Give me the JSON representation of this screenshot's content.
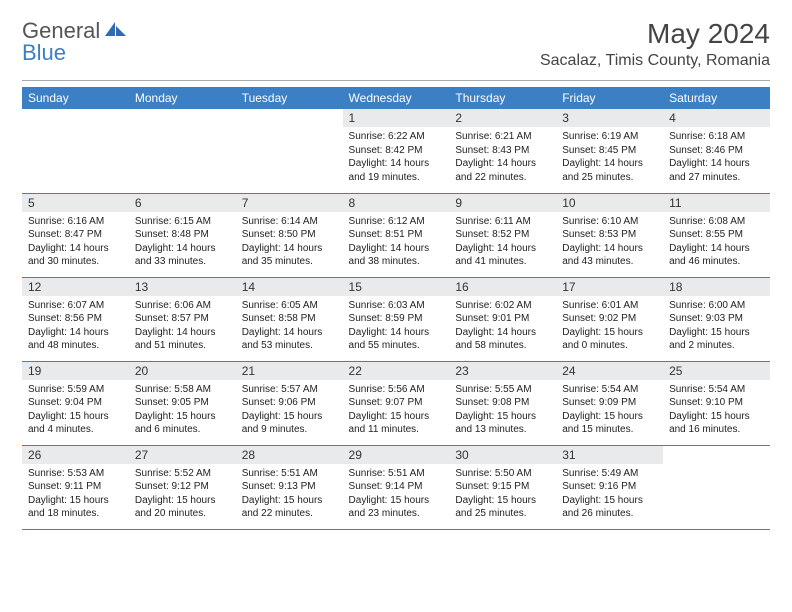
{
  "logo": {
    "part1": "General",
    "part2": "Blue"
  },
  "title": "May 2024",
  "location": "Sacalaz, Timis County, Romania",
  "colors": {
    "header_bg": "#3b7fc4",
    "header_text": "#ffffff",
    "daynum_bg": "#e8eaec",
    "rule": "#5a7a9a",
    "logo_blue": "#3b7fc4",
    "logo_gray": "#555555"
  },
  "weekdays": [
    "Sunday",
    "Monday",
    "Tuesday",
    "Wednesday",
    "Thursday",
    "Friday",
    "Saturday"
  ],
  "weeks": [
    [
      null,
      null,
      null,
      {
        "n": "1",
        "sunrise": "6:22 AM",
        "sunset": "8:42 PM",
        "dl_h": 14,
        "dl_m": 19
      },
      {
        "n": "2",
        "sunrise": "6:21 AM",
        "sunset": "8:43 PM",
        "dl_h": 14,
        "dl_m": 22
      },
      {
        "n": "3",
        "sunrise": "6:19 AM",
        "sunset": "8:45 PM",
        "dl_h": 14,
        "dl_m": 25
      },
      {
        "n": "4",
        "sunrise": "6:18 AM",
        "sunset": "8:46 PM",
        "dl_h": 14,
        "dl_m": 27
      }
    ],
    [
      {
        "n": "5",
        "sunrise": "6:16 AM",
        "sunset": "8:47 PM",
        "dl_h": 14,
        "dl_m": 30
      },
      {
        "n": "6",
        "sunrise": "6:15 AM",
        "sunset": "8:48 PM",
        "dl_h": 14,
        "dl_m": 33
      },
      {
        "n": "7",
        "sunrise": "6:14 AM",
        "sunset": "8:50 PM",
        "dl_h": 14,
        "dl_m": 35
      },
      {
        "n": "8",
        "sunrise": "6:12 AM",
        "sunset": "8:51 PM",
        "dl_h": 14,
        "dl_m": 38
      },
      {
        "n": "9",
        "sunrise": "6:11 AM",
        "sunset": "8:52 PM",
        "dl_h": 14,
        "dl_m": 41
      },
      {
        "n": "10",
        "sunrise": "6:10 AM",
        "sunset": "8:53 PM",
        "dl_h": 14,
        "dl_m": 43
      },
      {
        "n": "11",
        "sunrise": "6:08 AM",
        "sunset": "8:55 PM",
        "dl_h": 14,
        "dl_m": 46
      }
    ],
    [
      {
        "n": "12",
        "sunrise": "6:07 AM",
        "sunset": "8:56 PM",
        "dl_h": 14,
        "dl_m": 48
      },
      {
        "n": "13",
        "sunrise": "6:06 AM",
        "sunset": "8:57 PM",
        "dl_h": 14,
        "dl_m": 51
      },
      {
        "n": "14",
        "sunrise": "6:05 AM",
        "sunset": "8:58 PM",
        "dl_h": 14,
        "dl_m": 53
      },
      {
        "n": "15",
        "sunrise": "6:03 AM",
        "sunset": "8:59 PM",
        "dl_h": 14,
        "dl_m": 55
      },
      {
        "n": "16",
        "sunrise": "6:02 AM",
        "sunset": "9:01 PM",
        "dl_h": 14,
        "dl_m": 58
      },
      {
        "n": "17",
        "sunrise": "6:01 AM",
        "sunset": "9:02 PM",
        "dl_h": 15,
        "dl_m": 0
      },
      {
        "n": "18",
        "sunrise": "6:00 AM",
        "sunset": "9:03 PM",
        "dl_h": 15,
        "dl_m": 2
      }
    ],
    [
      {
        "n": "19",
        "sunrise": "5:59 AM",
        "sunset": "9:04 PM",
        "dl_h": 15,
        "dl_m": 4
      },
      {
        "n": "20",
        "sunrise": "5:58 AM",
        "sunset": "9:05 PM",
        "dl_h": 15,
        "dl_m": 6
      },
      {
        "n": "21",
        "sunrise": "5:57 AM",
        "sunset": "9:06 PM",
        "dl_h": 15,
        "dl_m": 9
      },
      {
        "n": "22",
        "sunrise": "5:56 AM",
        "sunset": "9:07 PM",
        "dl_h": 15,
        "dl_m": 11
      },
      {
        "n": "23",
        "sunrise": "5:55 AM",
        "sunset": "9:08 PM",
        "dl_h": 15,
        "dl_m": 13
      },
      {
        "n": "24",
        "sunrise": "5:54 AM",
        "sunset": "9:09 PM",
        "dl_h": 15,
        "dl_m": 15
      },
      {
        "n": "25",
        "sunrise": "5:54 AM",
        "sunset": "9:10 PM",
        "dl_h": 15,
        "dl_m": 16
      }
    ],
    [
      {
        "n": "26",
        "sunrise": "5:53 AM",
        "sunset": "9:11 PM",
        "dl_h": 15,
        "dl_m": 18
      },
      {
        "n": "27",
        "sunrise": "5:52 AM",
        "sunset": "9:12 PM",
        "dl_h": 15,
        "dl_m": 20
      },
      {
        "n": "28",
        "sunrise": "5:51 AM",
        "sunset": "9:13 PM",
        "dl_h": 15,
        "dl_m": 22
      },
      {
        "n": "29",
        "sunrise": "5:51 AM",
        "sunset": "9:14 PM",
        "dl_h": 15,
        "dl_m": 23
      },
      {
        "n": "30",
        "sunrise": "5:50 AM",
        "sunset": "9:15 PM",
        "dl_h": 15,
        "dl_m": 25
      },
      {
        "n": "31",
        "sunrise": "5:49 AM",
        "sunset": "9:16 PM",
        "dl_h": 15,
        "dl_m": 26
      },
      null
    ]
  ]
}
